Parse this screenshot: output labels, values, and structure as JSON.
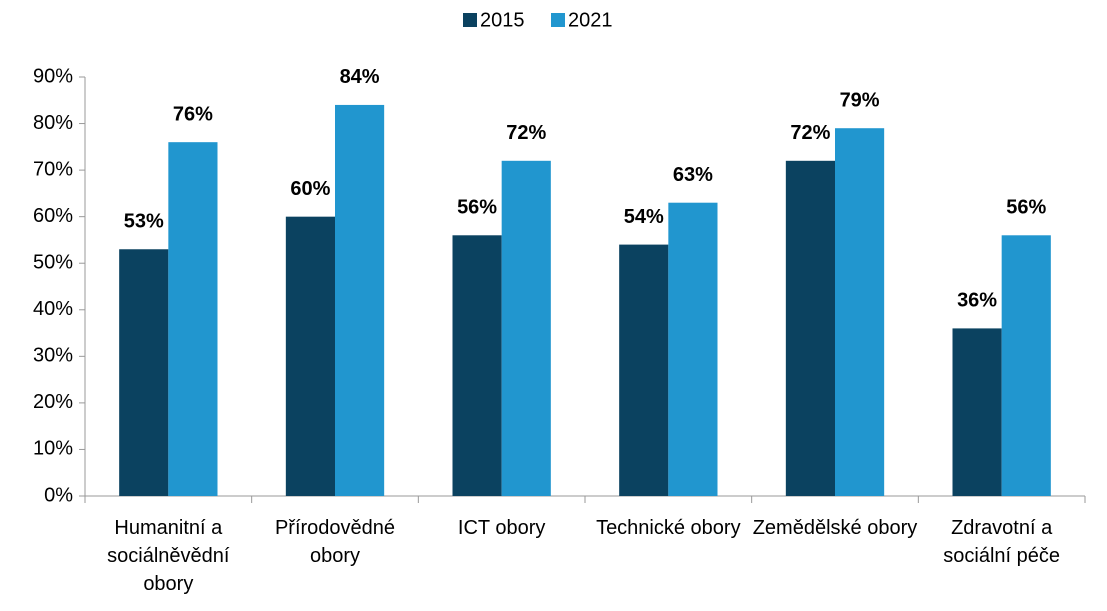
{
  "chart_data": {
    "type": "bar",
    "categories": [
      "Humanitní a sociálněvědní obory",
      "Přírodovědné obory",
      "ICT obory",
      "Technické obory",
      "Zemědělské obory",
      "Zdravotní a sociální péče"
    ],
    "series": [
      {
        "name": "2015",
        "color": "#0b4260",
        "values": [
          53,
          60,
          56,
          54,
          72,
          36
        ],
        "value_labels": [
          "53%",
          "60%",
          "56%",
          "54%",
          "72%",
          "36%"
        ]
      },
      {
        "name": "2021",
        "color": "#2196cf",
        "values": [
          76,
          84,
          72,
          63,
          79,
          56
        ],
        "value_labels": [
          "76%",
          "84%",
          "72%",
          "63%",
          "79%",
          "56%"
        ]
      }
    ],
    "ylim": [
      0,
      90
    ],
    "yticks": [
      {
        "value": 0,
        "label": "0%"
      },
      {
        "value": 10,
        "label": "10%"
      },
      {
        "value": 20,
        "label": "20%"
      },
      {
        "value": 30,
        "label": "30%"
      },
      {
        "value": 40,
        "label": "40%"
      },
      {
        "value": 50,
        "label": "50%"
      },
      {
        "value": 60,
        "label": "60%"
      },
      {
        "value": 70,
        "label": "70%"
      },
      {
        "value": 80,
        "label": "80%"
      },
      {
        "value": 90,
        "label": "90%"
      }
    ],
    "legend": "top"
  }
}
